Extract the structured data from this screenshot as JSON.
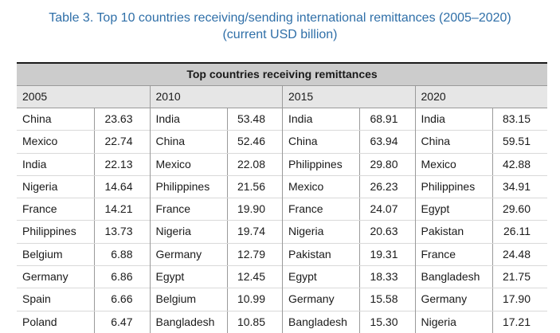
{
  "title": {
    "line1": "Table 3. Top 10 countries receiving/sending international remittances (2005–2020)",
    "line2": "(current USD billion)"
  },
  "table": {
    "caption": "Top countries receiving remittances",
    "columns": [
      {
        "year": "2005",
        "rows": [
          {
            "country": "China",
            "value": "23.63"
          },
          {
            "country": "Mexico",
            "value": "22.74"
          },
          {
            "country": "India",
            "value": "22.13"
          },
          {
            "country": "Nigeria",
            "value": "14.64"
          },
          {
            "country": "France",
            "value": "14.21"
          },
          {
            "country": "Philippines",
            "value": "13.73"
          },
          {
            "country": "Belgium",
            "value": "6.88"
          },
          {
            "country": "Germany",
            "value": "6.86"
          },
          {
            "country": "Spain",
            "value": "6.66"
          },
          {
            "country": "Poland",
            "value": "6.47"
          }
        ]
      },
      {
        "year": "2010",
        "rows": [
          {
            "country": "India",
            "value": "53.48"
          },
          {
            "country": "China",
            "value": "52.46"
          },
          {
            "country": "Mexico",
            "value": "22.08"
          },
          {
            "country": "Philippines",
            "value": "21.56"
          },
          {
            "country": "France",
            "value": "19.90"
          },
          {
            "country": "Nigeria",
            "value": "19.74"
          },
          {
            "country": "Germany",
            "value": "12.79"
          },
          {
            "country": "Egypt",
            "value": "12.45"
          },
          {
            "country": "Belgium",
            "value": "10.99"
          },
          {
            "country": "Bangladesh",
            "value": "10.85"
          }
        ]
      },
      {
        "year": "2015",
        "rows": [
          {
            "country": "India",
            "value": "68.91"
          },
          {
            "country": "China",
            "value": "63.94"
          },
          {
            "country": "Philippines",
            "value": "29.80"
          },
          {
            "country": "Mexico",
            "value": "26.23"
          },
          {
            "country": "France",
            "value": "24.07"
          },
          {
            "country": "Nigeria",
            "value": "20.63"
          },
          {
            "country": "Pakistan",
            "value": "19.31"
          },
          {
            "country": "Egypt",
            "value": "18.33"
          },
          {
            "country": "Germany",
            "value": "15.58"
          },
          {
            "country": "Bangladesh",
            "value": "15.30"
          }
        ]
      },
      {
        "year": "2020",
        "rows": [
          {
            "country": "India",
            "value": "83.15"
          },
          {
            "country": "China",
            "value": "59.51"
          },
          {
            "country": "Mexico",
            "value": "42.88"
          },
          {
            "country": "Philippines",
            "value": "34.91"
          },
          {
            "country": "Egypt",
            "value": "29.60"
          },
          {
            "country": "Pakistan",
            "value": "26.11"
          },
          {
            "country": "France",
            "value": "24.48"
          },
          {
            "country": "Bangladesh",
            "value": "21.75"
          },
          {
            "country": "Germany",
            "value": "17.90"
          },
          {
            "country": "Nigeria",
            "value": "17.21"
          }
        ]
      }
    ]
  }
}
